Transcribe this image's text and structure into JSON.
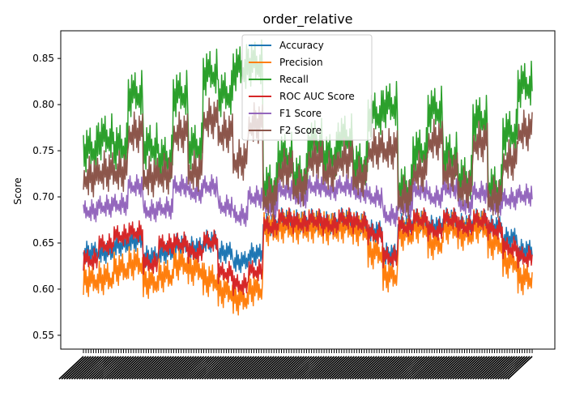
{
  "chart_data": {
    "type": "line",
    "title": "order_relative",
    "xlabel": "",
    "ylabel": "Score",
    "ylim": [
      0.535,
      0.88
    ],
    "y_ticks": [
      0.55,
      0.6,
      0.65,
      0.7,
      0.75,
      0.8,
      0.85
    ],
    "y_tick_labels": [
      "0.55",
      "0.60",
      "0.65",
      "0.70",
      "0.75",
      "0.80",
      "0.85"
    ],
    "grid": false,
    "legend_position": "top-center",
    "segments": 30,
    "segment_len": 18,
    "oscillation_pattern": [
      0,
      -0.6,
      0.35,
      -0.9,
      1.0,
      -0.3,
      0.6,
      -0.75,
      0.2,
      -1.0,
      0.8,
      -0.4,
      0.55,
      -0.2,
      0.9,
      -0.65,
      0.3,
      -0.5
    ],
    "series": [
      {
        "name": "Accuracy",
        "color": "#1f77b4",
        "amplitude": 0.012,
        "levels": [
          0.64,
          0.64,
          0.648,
          0.653,
          0.635,
          0.64,
          0.648,
          0.645,
          0.652,
          0.64,
          0.63,
          0.638,
          0.67,
          0.676,
          0.674,
          0.675,
          0.672,
          0.676,
          0.672,
          0.663,
          0.638,
          0.67,
          0.675,
          0.668,
          0.676,
          0.67,
          0.675,
          0.668,
          0.655,
          0.642
        ]
      },
      {
        "name": "Precision",
        "color": "#ff7f0e",
        "amplitude": 0.018,
        "levels": [
          0.61,
          0.612,
          0.622,
          0.628,
          0.608,
          0.615,
          0.628,
          0.622,
          0.61,
          0.598,
          0.59,
          0.6,
          0.665,
          0.668,
          0.667,
          0.668,
          0.666,
          0.668,
          0.665,
          0.64,
          0.615,
          0.66,
          0.668,
          0.65,
          0.667,
          0.66,
          0.668,
          0.65,
          0.63,
          0.612
        ]
      },
      {
        "name": "Recall",
        "color": "#2ca02c",
        "amplitude": 0.025,
        "levels": [
          0.752,
          0.765,
          0.755,
          0.812,
          0.755,
          0.742,
          0.812,
          0.755,
          0.835,
          0.812,
          0.84,
          0.845,
          0.712,
          0.745,
          0.722,
          0.76,
          0.745,
          0.765,
          0.735,
          0.79,
          0.8,
          0.71,
          0.75,
          0.795,
          0.745,
          0.72,
          0.785,
          0.71,
          0.77,
          0.822
        ]
      },
      {
        "name": "ROC AUC Score",
        "color": "#d62728",
        "amplitude": 0.012,
        "levels": [
          0.632,
          0.648,
          0.658,
          0.662,
          0.628,
          0.648,
          0.65,
          0.64,
          0.652,
          0.618,
          0.605,
          0.62,
          0.668,
          0.676,
          0.672,
          0.675,
          0.67,
          0.676,
          0.672,
          0.66,
          0.635,
          0.668,
          0.676,
          0.664,
          0.676,
          0.668,
          0.675,
          0.665,
          0.645,
          0.635
        ]
      },
      {
        "name": "F1 Score",
        "color": "#9467bd",
        "amplitude": 0.012,
        "levels": [
          0.685,
          0.69,
          0.692,
          0.712,
          0.685,
          0.688,
          0.712,
          0.705,
          0.712,
          0.69,
          0.68,
          0.7,
          0.69,
          0.708,
          0.7,
          0.712,
          0.708,
          0.712,
          0.705,
          0.7,
          0.68,
          0.69,
          0.708,
          0.7,
          0.71,
          0.692,
          0.705,
          0.692,
          0.698,
          0.702
        ]
      },
      {
        "name": "F2 Score",
        "color": "#8c564b",
        "amplitude": 0.022,
        "levels": [
          0.722,
          0.728,
          0.728,
          0.77,
          0.722,
          0.725,
          0.77,
          0.728,
          0.785,
          0.77,
          0.74,
          0.78,
          0.7,
          0.73,
          0.712,
          0.742,
          0.728,
          0.742,
          0.722,
          0.752,
          0.752,
          0.7,
          0.728,
          0.762,
          0.728,
          0.71,
          0.76,
          0.7,
          0.74,
          0.772
        ]
      }
    ]
  }
}
